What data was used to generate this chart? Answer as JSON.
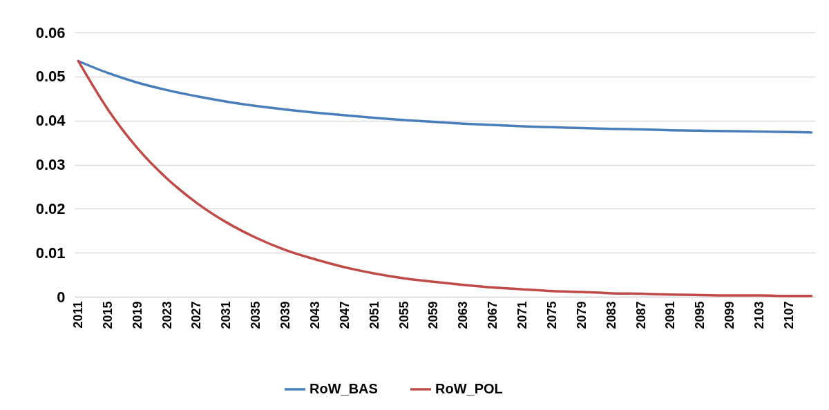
{
  "chart_data": {
    "type": "line",
    "xlim": [
      2010.5,
      2110.5
    ],
    "xticks": [
      2011,
      2015,
      2019,
      2023,
      2027,
      2031,
      2035,
      2039,
      2043,
      2047,
      2051,
      2055,
      2059,
      2063,
      2067,
      2071,
      2075,
      2079,
      2083,
      2087,
      2091,
      2095,
      2099,
      2103,
      2107
    ],
    "ylim": [
      0,
      0.06
    ],
    "yticks": [
      0,
      0.01,
      0.02,
      0.03,
      0.04,
      0.05,
      0.06
    ],
    "grid": "y",
    "legend": "bottom",
    "marker": "none",
    "line_style": "solid",
    "x": [
      2011,
      2015,
      2019,
      2023,
      2027,
      2031,
      2035,
      2039,
      2043,
      2047,
      2051,
      2055,
      2059,
      2063,
      2067,
      2071,
      2075,
      2079,
      2083,
      2087,
      2091,
      2095,
      2099,
      2103,
      2107,
      2110
    ],
    "series": [
      {
        "name": "RoW_BAS",
        "color": "#4a7ebb",
        "values": [
          0.0535,
          0.0508,
          0.0486,
          0.0469,
          0.0455,
          0.0443,
          0.0433,
          0.0425,
          0.0418,
          0.0412,
          0.0406,
          0.0401,
          0.0397,
          0.0393,
          0.039,
          0.0387,
          0.0385,
          0.0383,
          0.0381,
          0.038,
          0.0378,
          0.0377,
          0.0376,
          0.0375,
          0.0374,
          0.0373
        ]
      },
      {
        "name": "RoW_POL",
        "color": "#be4b48",
        "values": [
          0.0535,
          0.0425,
          0.0337,
          0.0268,
          0.0213,
          0.0169,
          0.0134,
          0.0106,
          0.0085,
          0.0067,
          0.0053,
          0.0042,
          0.0034,
          0.0027,
          0.0021,
          0.0017,
          0.0013,
          0.0011,
          0.0008,
          0.0007,
          0.0005,
          0.0004,
          0.0003,
          0.0003,
          0.0002,
          0.0002
        ]
      }
    ]
  }
}
